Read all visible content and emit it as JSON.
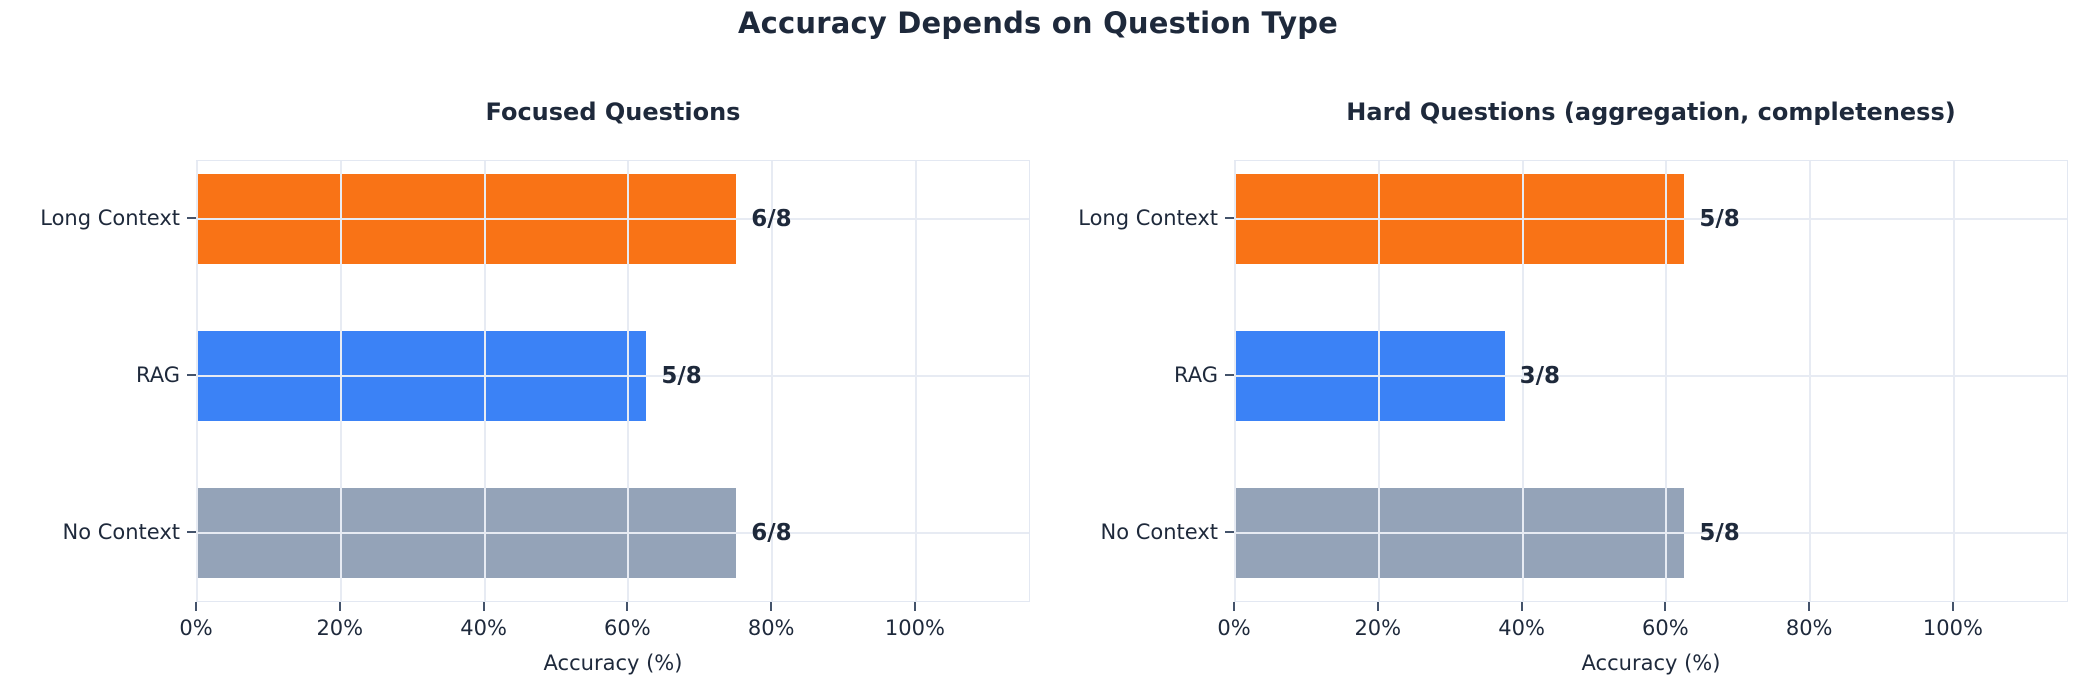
{
  "figure": {
    "title": "Accuracy Depends on Question Type"
  },
  "colors": {
    "long_context": "#f97316",
    "rag": "#3b82f6",
    "no_context": "#94a3b8",
    "text": "#1e293b",
    "gridline": "#e7ebf3"
  },
  "chart_data": [
    {
      "type": "bar",
      "orientation": "horizontal",
      "title": "Focused Questions",
      "categories": [
        "Long Context",
        "RAG",
        "No Context"
      ],
      "values": [
        75,
        62.5,
        75
      ],
      "bar_labels": [
        "6/8",
        "5/8",
        "6/8"
      ],
      "bar_colors": [
        "#f97316",
        "#3b82f6",
        "#94a3b8"
      ],
      "xlabel": "Accuracy (%)",
      "xlim": [
        0,
        116
      ],
      "xticks": [
        0,
        20,
        40,
        60,
        80,
        100
      ],
      "xtick_labels": [
        "0%",
        "20%",
        "40%",
        "60%",
        "80%",
        "100%"
      ],
      "grid": true,
      "legend": "none"
    },
    {
      "type": "bar",
      "orientation": "horizontal",
      "title": "Hard Questions (aggregation, completeness)",
      "categories": [
        "Long Context",
        "RAG",
        "No Context"
      ],
      "values": [
        62.5,
        37.5,
        62.5
      ],
      "bar_labels": [
        "5/8",
        "3/8",
        "5/8"
      ],
      "bar_colors": [
        "#f97316",
        "#3b82f6",
        "#94a3b8"
      ],
      "xlabel": "Accuracy (%)",
      "xlim": [
        0,
        116
      ],
      "xticks": [
        0,
        20,
        40,
        60,
        80,
        100
      ],
      "xtick_labels": [
        "0%",
        "20%",
        "40%",
        "60%",
        "80%",
        "100%"
      ],
      "grid": true,
      "legend": "none"
    }
  ]
}
